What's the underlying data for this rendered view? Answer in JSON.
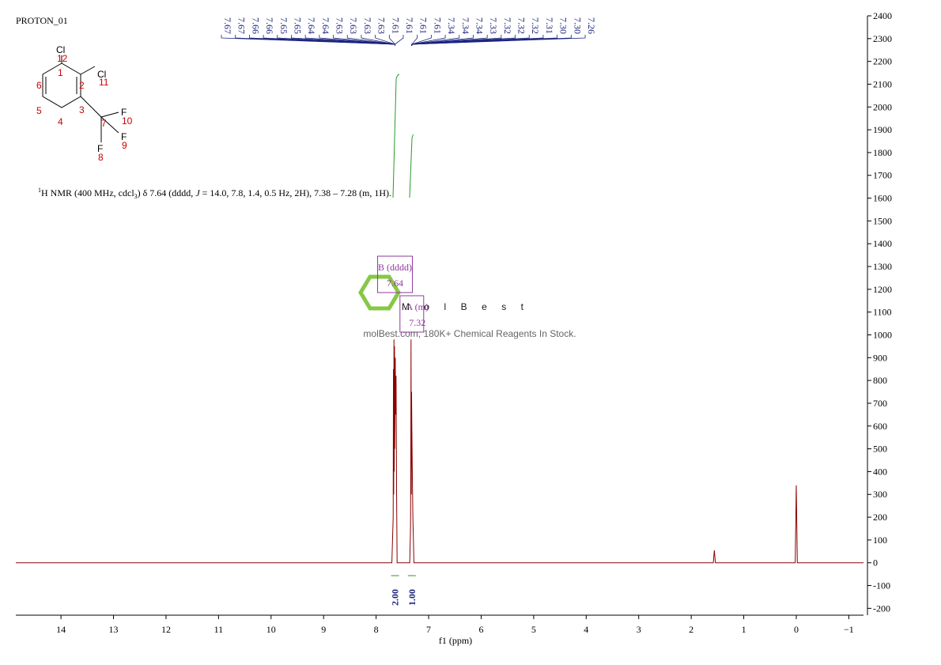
{
  "title": "PROTON_01",
  "description_parts": [
    "1",
    "H NMR (400 MHz, cdcl",
    "3",
    ") δ 7.64 (dddd, ",
    "J",
    " = 14.0, 7.8, 1.4, 0.5 Hz, 2H), 7.38 – 7.28 (m, 1H)."
  ],
  "structure": {
    "atoms": [
      "Cl",
      "12",
      "1",
      "2",
      "Cl",
      "11",
      "6",
      "5",
      "4",
      "3",
      "7",
      "F",
      "10",
      "F",
      "9",
      "F",
      "8"
    ]
  },
  "watermark": {
    "brand": "MolBest",
    "tagline": "molBest.com, 180K+ Chemical Reagents In Stock."
  },
  "chart_data": {
    "type": "line",
    "x_label": "f1 (ppm)",
    "xlim": [
      14.86,
      -1.28
    ],
    "ylim": [
      -230,
      2400
    ],
    "xticks": [
      14,
      13,
      12,
      11,
      10,
      9,
      8,
      7,
      6,
      5,
      4,
      3,
      2,
      1,
      0,
      {
        "value": -1,
        "label": "−1"
      }
    ],
    "yticks": [
      -200,
      -100,
      0,
      100,
      200,
      300,
      400,
      500,
      600,
      700,
      800,
      900,
      1000,
      1100,
      1200,
      1300,
      1400,
      1500,
      1600,
      1700,
      1800,
      1900,
      2000,
      2100,
      2200,
      2300,
      2400
    ],
    "series": [
      {
        "color": "#8b0000",
        "x": [
          14.86,
          7.7,
          7.675,
          7.67,
          7.665,
          7.66,
          7.655,
          7.65,
          7.645,
          7.64,
          7.635,
          7.63,
          7.62,
          7.61,
          7.6,
          7.36,
          7.345,
          7.34,
          7.335,
          7.33,
          7.325,
          7.32,
          7.31,
          7.3,
          7.29,
          7.28,
          1.58,
          1.56,
          1.54,
          0.02,
          0,
          -0.02,
          -1.28
        ],
        "values": [
          0,
          0,
          200,
          850,
          300,
          980,
          400,
          950,
          500,
          700,
          900,
          650,
          820,
          300,
          0,
          0,
          150,
          400,
          980,
          300,
          750,
          600,
          390,
          200,
          100,
          0,
          0,
          55,
          0,
          0,
          340,
          0,
          0
        ]
      }
    ],
    "peak_labels": [
      "7.67",
      "7.67",
      "7.66",
      "7.66",
      "7.65",
      "7.65",
      "7.64",
      "7.64",
      "7.63",
      "7.63",
      "7.63",
      "7.63",
      "7.61",
      "7.61",
      "7.61",
      "7.61",
      "7.34",
      "7.34",
      "7.34",
      "7.33",
      "7.32",
      "7.32",
      "7.32",
      "7.31",
      "7.30",
      "7.30",
      "7.26"
    ],
    "multiplets": [
      {
        "label": "B (dddd)",
        "shift": 7.64,
        "integral": 2,
        "integral_label": "2.00"
      },
      {
        "label": "A (m)",
        "shift": 7.32,
        "integral": 1,
        "integral_label": "1.00"
      }
    ]
  }
}
